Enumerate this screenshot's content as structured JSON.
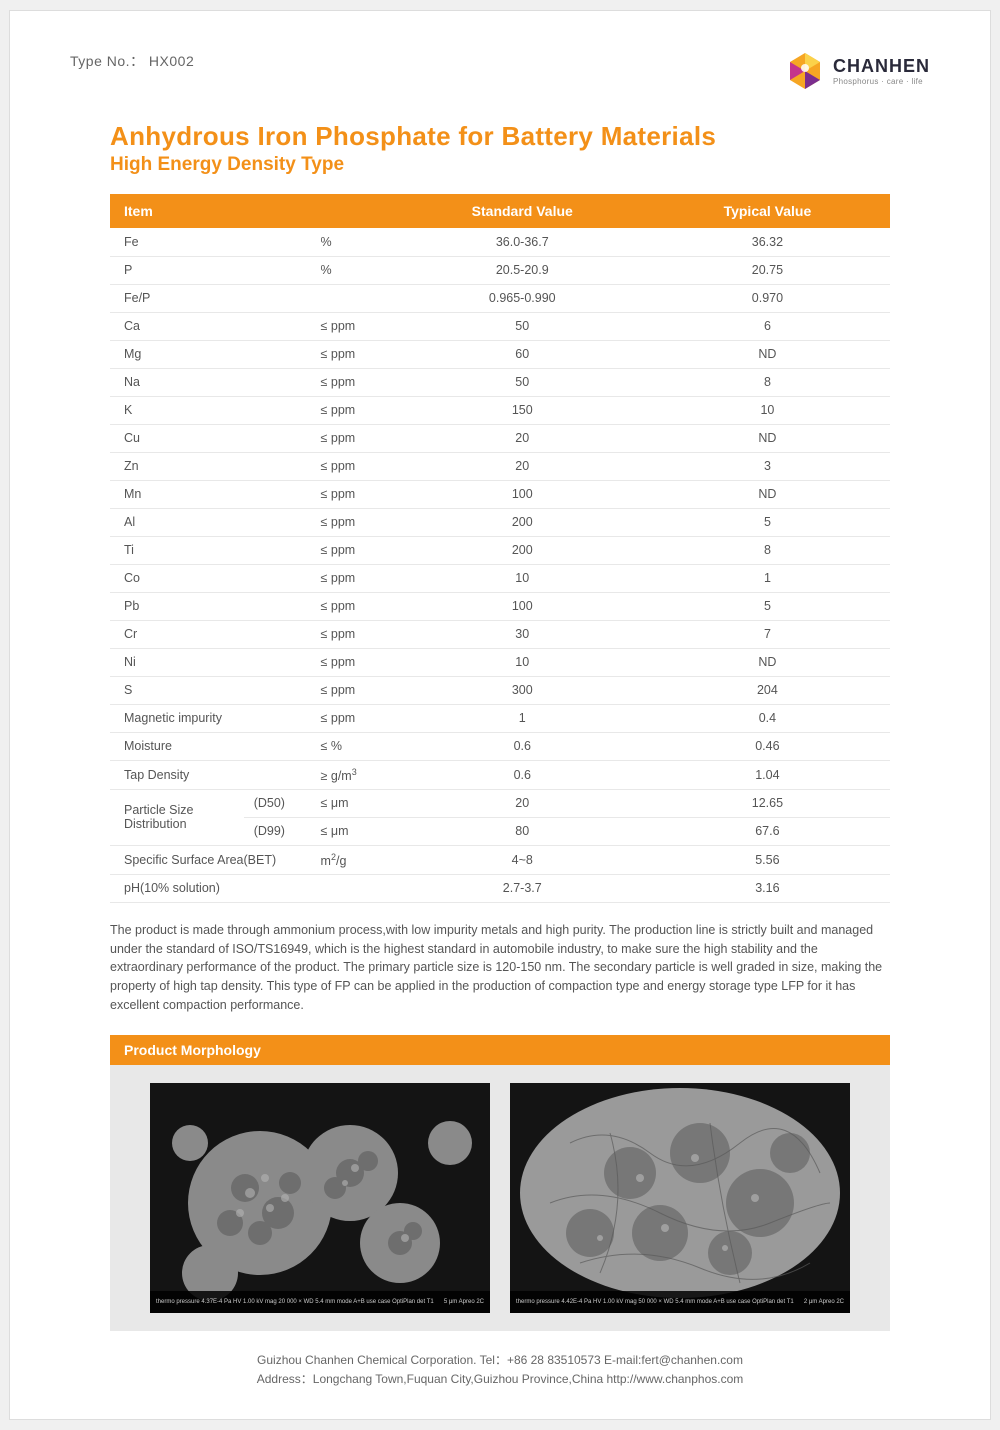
{
  "colors": {
    "accent": "#f39018",
    "text_body": "#555555",
    "text_muted": "#666666",
    "border": "#e8e8e8",
    "morph_bg": "#e8e8e8",
    "page_bg": "#ffffff",
    "logo_dark": "#2a2a3a"
  },
  "header": {
    "type_no_label": "Type No.：",
    "type_no_value": "HX002",
    "logo_name": "CHANHEN",
    "logo_tagline": "Phosphorus · care · life"
  },
  "title": "Anhydrous Iron Phosphate for Battery Materials",
  "subtitle": "High Energy Density Type",
  "table": {
    "headers": [
      "Item",
      "Standard Value",
      "Typical Value"
    ],
    "rows": [
      {
        "item": "Fe",
        "sub": "",
        "unit": "%",
        "std": "36.0-36.7",
        "typ": "36.32"
      },
      {
        "item": "P",
        "sub": "",
        "unit": "%",
        "std": "20.5-20.9",
        "typ": "20.75"
      },
      {
        "item": "Fe/P",
        "sub": "",
        "unit": "",
        "std": "0.965-0.990",
        "typ": "0.970"
      },
      {
        "item": "Ca",
        "sub": "",
        "unit": "≤ ppm",
        "std": "50",
        "typ": "6"
      },
      {
        "item": "Mg",
        "sub": "",
        "unit": "≤ ppm",
        "std": "60",
        "typ": "ND"
      },
      {
        "item": "Na",
        "sub": "",
        "unit": "≤ ppm",
        "std": "50",
        "typ": "8"
      },
      {
        "item": "K",
        "sub": "",
        "unit": "≤ ppm",
        "std": "150",
        "typ": "10"
      },
      {
        "item": "Cu",
        "sub": "",
        "unit": "≤ ppm",
        "std": "20",
        "typ": "ND"
      },
      {
        "item": "Zn",
        "sub": "",
        "unit": "≤ ppm",
        "std": "20",
        "typ": "3"
      },
      {
        "item": "Mn",
        "sub": "",
        "unit": "≤ ppm",
        "std": "100",
        "typ": "ND"
      },
      {
        "item": "Al",
        "sub": "",
        "unit": "≤ ppm",
        "std": "200",
        "typ": "5"
      },
      {
        "item": "Ti",
        "sub": "",
        "unit": "≤ ppm",
        "std": "200",
        "typ": "8"
      },
      {
        "item": "Co",
        "sub": "",
        "unit": "≤ ppm",
        "std": "10",
        "typ": "1"
      },
      {
        "item": "Pb",
        "sub": "",
        "unit": "≤ ppm",
        "std": "100",
        "typ": "5"
      },
      {
        "item": "Cr",
        "sub": "",
        "unit": "≤ ppm",
        "std": "30",
        "typ": "7"
      },
      {
        "item": "Ni",
        "sub": "",
        "unit": "≤ ppm",
        "std": "10",
        "typ": "ND"
      },
      {
        "item": "S",
        "sub": "",
        "unit": "≤ ppm",
        "std": "300",
        "typ": "204"
      },
      {
        "item": "Magnetic impurity",
        "sub": "",
        "unit": "≤ ppm",
        "std": "1",
        "typ": "0.4"
      },
      {
        "item": "Moisture",
        "sub": "",
        "unit": "≤ %",
        "std": "0.6",
        "typ": "0.46"
      },
      {
        "item": "Tap Density",
        "sub": "",
        "unit": "≥ g/m³",
        "std": "0.6",
        "typ": "1.04"
      }
    ],
    "psd_label": "Particle Size Distribution",
    "psd_rows": [
      {
        "sub": "(D50)",
        "unit": "≤ μm",
        "std": "20",
        "typ": "12.65"
      },
      {
        "sub": "(D99)",
        "unit": "≤ μm",
        "std": "80",
        "typ": "67.6"
      }
    ],
    "bet": {
      "item": "Specific Surface Area(BET)",
      "unit": "m²/g",
      "std": "4~8",
      "typ": "5.56"
    },
    "ph": {
      "item": "pH(10% solution)",
      "unit": "",
      "std": "2.7-3.7",
      "typ": "3.16"
    }
  },
  "description": "The product is made through ammonium process,with low impurity metals and high purity. The production line is strictly built and managed under the standard of ISO/TS16949, which is the highest standard in automobile industry, to make sure the high stability and the extraordinary performance of the product. The primary particle size is 120-150 nm. The secondary particle is well graded in size, making the property of high tap density. This type of FP can be applied in the production of compaction type and energy storage type LFP for it has excellent compaction performance.",
  "morphology": {
    "header": "Product Morphology",
    "image1_caption_left": "thermo   pressure 4.37E-4 Pa   HV 1.00 kV   mag 20 000 ×   WD 5.4 mm   mode A+B   use case OptiPlan   det T1",
    "image1_caption_right": "5 μm   Apreo 2C",
    "image2_caption_left": "thermo   pressure 4.42E-4 Pa   HV 1.00 kV   mag 50 000 ×   WD 5.4 mm   mode A+B   use case OptiPlan   det T1",
    "image2_caption_right": "2 μm   Apreo 2C"
  },
  "footer": {
    "line1": "Guizhou Chanhen Chemical Corporation.  Tel：+86 28 83510573   E-mail:fert@chanhen.com",
    "line2": "Address：Longchang Town,Fuquan City,Guizhou Province,China   http://www.chanphos.com"
  }
}
